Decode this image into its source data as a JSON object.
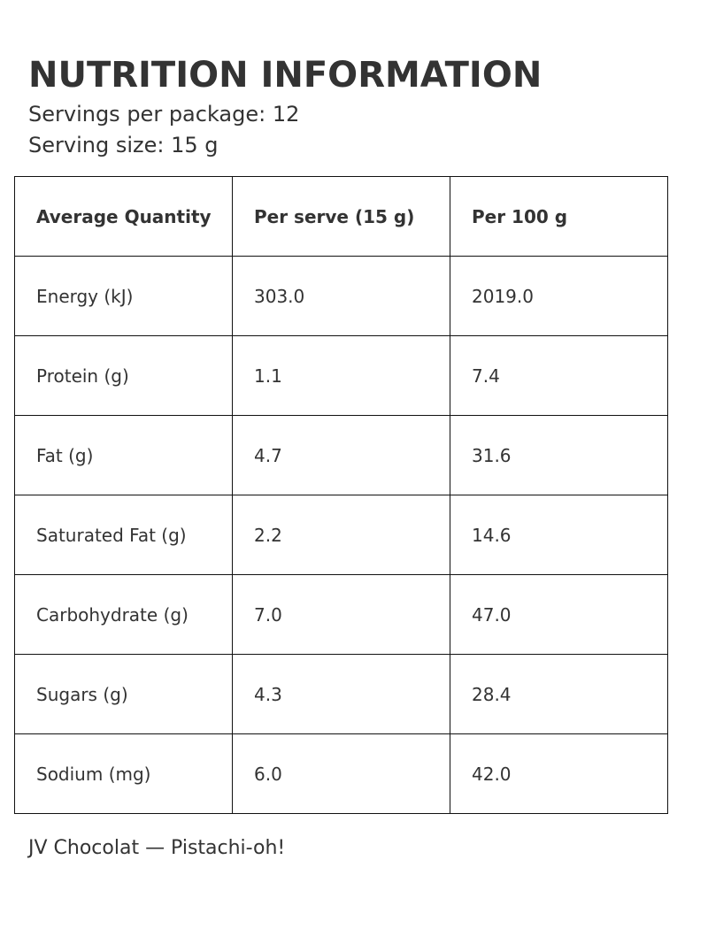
{
  "title": "NUTRITION INFORMATION",
  "servings_per_package": "Servings per package: 12",
  "serving_size": "Serving size: 15 g",
  "table": {
    "headers": [
      "Average Quantity",
      "Per serve (15 g)",
      "Per 100 g"
    ],
    "rows": [
      [
        "Energy (kJ)",
        "303.0",
        "2019.0"
      ],
      [
        "Protein (g)",
        "1.1",
        "7.4"
      ],
      [
        "Fat (g)",
        "4.7",
        "31.6"
      ],
      [
        "Saturated Fat (g)",
        "2.2",
        "14.6"
      ],
      [
        "Carbohydrate (g)",
        "7.0",
        "47.0"
      ],
      [
        "Sugars (g)",
        "4.3",
        "28.4"
      ],
      [
        "Sodium (mg)",
        "6.0",
        "42.0"
      ]
    ]
  },
  "footer": "JV Chocolat — Pistachi-oh!"
}
